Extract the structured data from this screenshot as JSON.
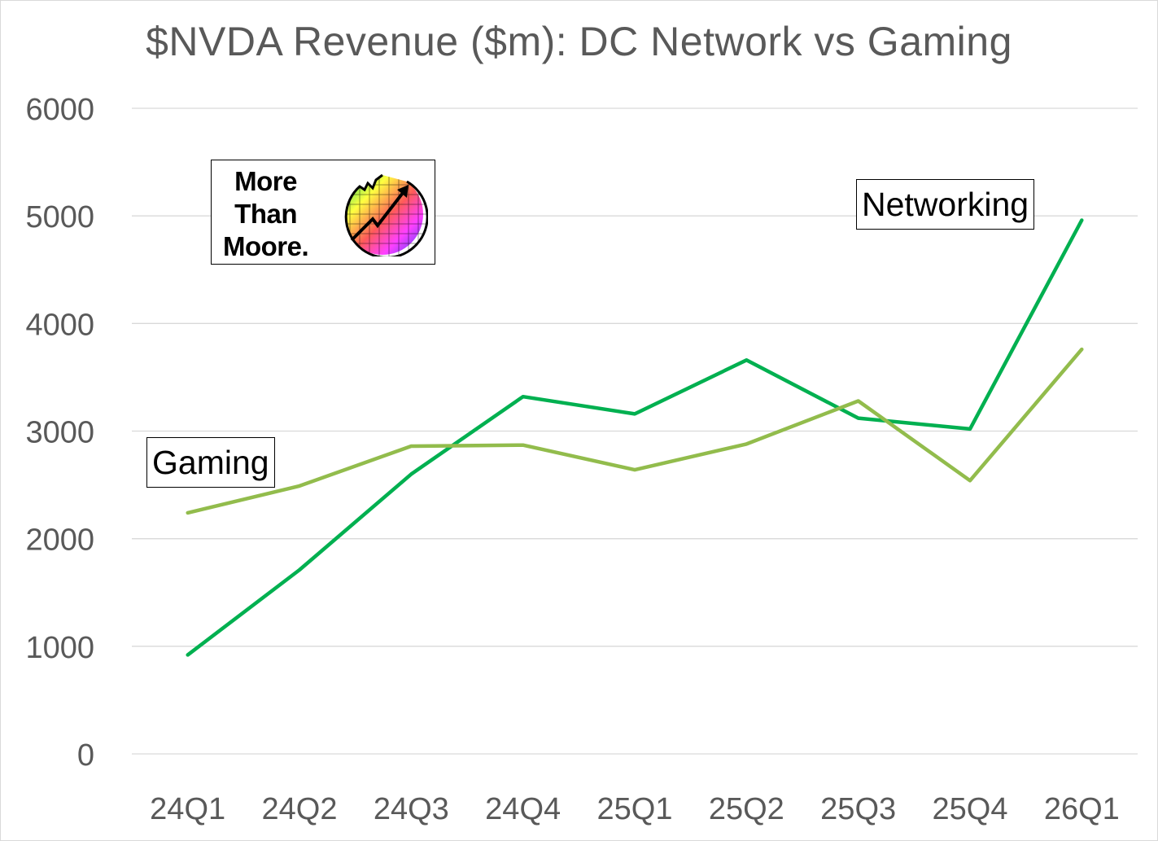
{
  "chart_data": {
    "type": "line",
    "title": "$NVDA Revenue ($m): DC Network vs Gaming",
    "categories": [
      "24Q1",
      "24Q2",
      "24Q3",
      "24Q4",
      "25Q1",
      "25Q2",
      "25Q3",
      "25Q4",
      "26Q1"
    ],
    "ylim": [
      0,
      6000
    ],
    "yticks": [
      0,
      1000,
      2000,
      3000,
      4000,
      5000,
      6000
    ],
    "grid": true,
    "series": [
      {
        "name": "Networking",
        "color": "#00b050",
        "values": [
          920,
          1710,
          2600,
          3320,
          3160,
          3660,
          3120,
          3020,
          4960
        ]
      },
      {
        "name": "Gaming",
        "color": "#92bc4c",
        "values": [
          2240,
          2490,
          2860,
          2870,
          2640,
          2880,
          3280,
          2540,
          3760
        ]
      }
    ],
    "callouts": [
      {
        "text": "Networking",
        "series": "Networking"
      },
      {
        "text": "Gaming",
        "series": "Gaming"
      }
    ]
  },
  "logo": {
    "lines": [
      "More",
      "Than",
      "Moore."
    ],
    "icon": "rising-arrow-wafer-icon"
  }
}
